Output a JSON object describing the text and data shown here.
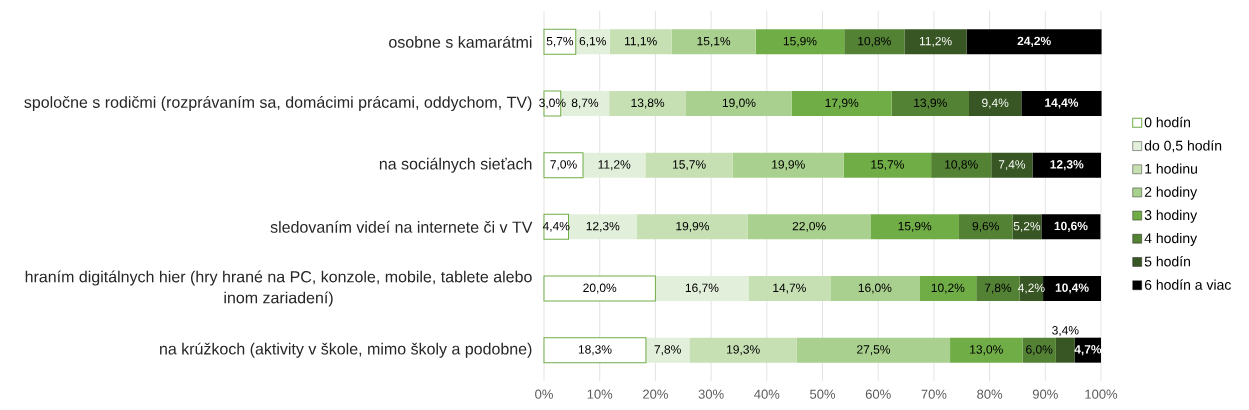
{
  "chart_data": {
    "type": "bar",
    "orientation": "horizontal",
    "stacked": true,
    "categories": [
      "osobne s kamarátmi",
      "spoločne s rodičmi (rozprávaním sa, domácimi prácami, oddychom, TV)",
      "na sociálnych sieťach",
      "sledovaním videí na internete či v TV",
      "hraním digitálnych hier (hry hrané na PC, konzole, mobile, tablete alebo inom zariadení)",
      "na krúžkoch (aktivity v škole, mimo školy a podobne)"
    ],
    "series": [
      {
        "name": "0 hodín",
        "color": "#ffffff",
        "values": [
          5.7,
          3.0,
          7.0,
          4.4,
          20.0,
          18.3
        ],
        "value_labels": [
          "5,7%",
          "3,0%",
          "7,0%",
          "4,4%",
          "20,0%",
          "18,3%"
        ]
      },
      {
        "name": "do 0,5 hodín",
        "color": "#e2efda",
        "values": [
          6.1,
          8.7,
          11.2,
          12.3,
          16.7,
          7.8
        ],
        "value_labels": [
          "6,1%",
          "8,7%",
          "11,2%",
          "12,3%",
          "16,7%",
          "7,8%"
        ]
      },
      {
        "name": "1 hodinu",
        "color": "#c6e0b4",
        "values": [
          11.1,
          13.8,
          15.7,
          19.9,
          14.7,
          19.3
        ],
        "value_labels": [
          "11,1%",
          "13,8%",
          "15,7%",
          "19,9%",
          "14,7%",
          "19,3%"
        ]
      },
      {
        "name": "2 hodiny",
        "color": "#a9d08e",
        "values": [
          15.1,
          19.0,
          19.9,
          22.0,
          16.0,
          27.5
        ],
        "value_labels": [
          "15,1%",
          "19,0%",
          "19,9%",
          "22,0%",
          "16,0%",
          "27,5%"
        ]
      },
      {
        "name": "3 hodiny",
        "color": "#70ad47",
        "values": [
          15.9,
          17.9,
          15.7,
          15.9,
          10.2,
          13.0
        ],
        "value_labels": [
          "15,9%",
          "17,9%",
          "15,7%",
          "15,9%",
          "10,2%",
          "13,0%"
        ]
      },
      {
        "name": "4 hodiny",
        "color": "#548235",
        "values": [
          10.8,
          13.9,
          10.8,
          9.6,
          7.8,
          6.0
        ],
        "value_labels": [
          "10,8%",
          "13,9%",
          "10,8%",
          "9,6%",
          "7,8%",
          "6,0%"
        ]
      },
      {
        "name": "5 hodín",
        "color": "#375623",
        "values": [
          11.2,
          9.4,
          7.4,
          5.2,
          4.2,
          3.4
        ],
        "value_labels": [
          "11,2%",
          "9,4%",
          "7,4%",
          "5,2%",
          "4,2%",
          "3,4%"
        ]
      },
      {
        "name": "6 hodín a viac",
        "color": "#000000",
        "values": [
          24.2,
          14.4,
          12.3,
          10.6,
          10.4,
          4.7
        ],
        "value_labels": [
          "24,2%",
          "14,4%",
          "12,3%",
          "10,6%",
          "10,4%",
          "4,7%"
        ]
      }
    ],
    "xlim": [
      0,
      100
    ],
    "xticks": [
      {
        "value": 0,
        "label": "0%"
      },
      {
        "value": 10,
        "label": "10%"
      },
      {
        "value": 20,
        "label": "20%"
      },
      {
        "value": 30,
        "label": "30%"
      },
      {
        "value": 40,
        "label": "40%"
      },
      {
        "value": 50,
        "label": "50%"
      },
      {
        "value": 60,
        "label": "60%"
      },
      {
        "value": 70,
        "label": "70%"
      },
      {
        "value": 80,
        "label": "80%"
      },
      {
        "value": 90,
        "label": "90%"
      },
      {
        "value": 100,
        "label": "100%"
      }
    ],
    "grid": "x",
    "legend": "right"
  }
}
